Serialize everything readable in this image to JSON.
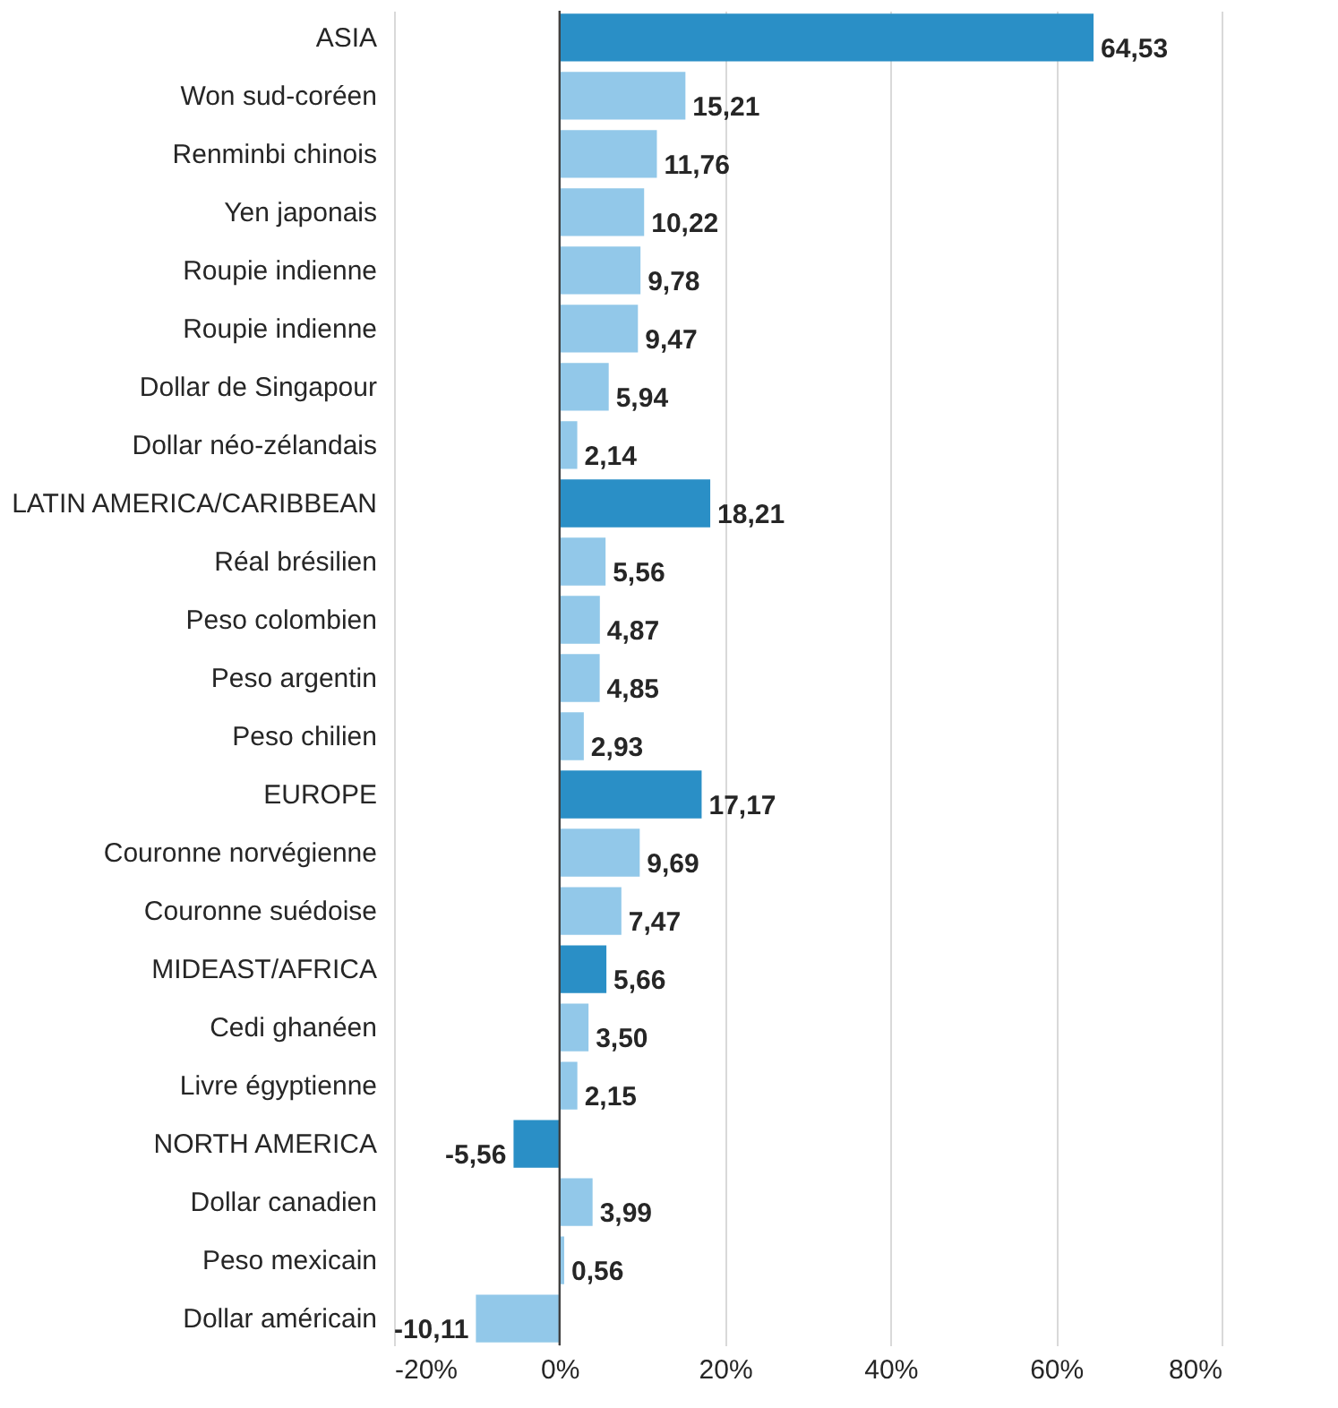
{
  "chart_data": {
    "type": "bar",
    "orientation": "horizontal",
    "categories": [
      "ASIA",
      "Won sud-coréen",
      "Renminbi chinois",
      "Yen japonais",
      "Roupie indienne",
      "Roupie indienne",
      "Dollar de Singapour",
      "Dollar néo-zélandais",
      "LATIN AMERICA/CARIBBEAN",
      "Réal brésilien",
      "Peso colombien",
      "Peso argentin",
      "Peso chilien",
      "EUROPE",
      "Couronne norvégienne",
      "Couronne suédoise",
      "MIDEAST/AFRICA",
      "Cedi ghanéen",
      "Livre égyptienne",
      "NORTH AMERICA",
      "Dollar canadien",
      "Peso mexicain",
      "Dollar américain"
    ],
    "values": [
      64.53,
      15.21,
      11.76,
      10.22,
      9.78,
      9.47,
      5.94,
      2.14,
      18.21,
      5.56,
      4.87,
      4.85,
      2.93,
      17.17,
      9.69,
      7.47,
      5.66,
      3.5,
      2.15,
      -5.56,
      3.99,
      0.56,
      -10.11
    ],
    "value_labels": [
      "64,53",
      "15,21",
      "11,76",
      "10,22",
      "9,78",
      "9,47",
      "5,94",
      "2,14",
      "18,21",
      "5,56",
      "4,87",
      "4,85",
      "2,93",
      "17,17",
      "9,69",
      "7,47",
      "5,66",
      "3,50",
      "2,15",
      "-5,56",
      "3,99",
      "0,56",
      "-10,11"
    ],
    "colors": [
      "#2a8fc6",
      "#92c8e9",
      "#92c8e9",
      "#92c8e9",
      "#92c8e9",
      "#92c8e9",
      "#92c8e9",
      "#92c8e9",
      "#2a8fc6",
      "#92c8e9",
      "#92c8e9",
      "#92c8e9",
      "#92c8e9",
      "#2a8fc6",
      "#92c8e9",
      "#92c8e9",
      "#2a8fc6",
      "#92c8e9",
      "#92c8e9",
      "#2a8fc6",
      "#92c8e9",
      "#92c8e9",
      "#92c8e9"
    ],
    "xlim": [
      -20,
      80
    ],
    "xticks": [
      {
        "value": -20,
        "label": "-20%"
      },
      {
        "value": 0,
        "label": "0%"
      },
      {
        "value": 20,
        "label": "20%"
      },
      {
        "value": 40,
        "label": "40%"
      },
      {
        "value": 60,
        "label": "60%"
      },
      {
        "value": 80,
        "label": "80%"
      }
    ],
    "ref_lines": [
      {
        "axis": "x",
        "value": 0,
        "color": "#404040"
      }
    ],
    "grid": "x"
  }
}
